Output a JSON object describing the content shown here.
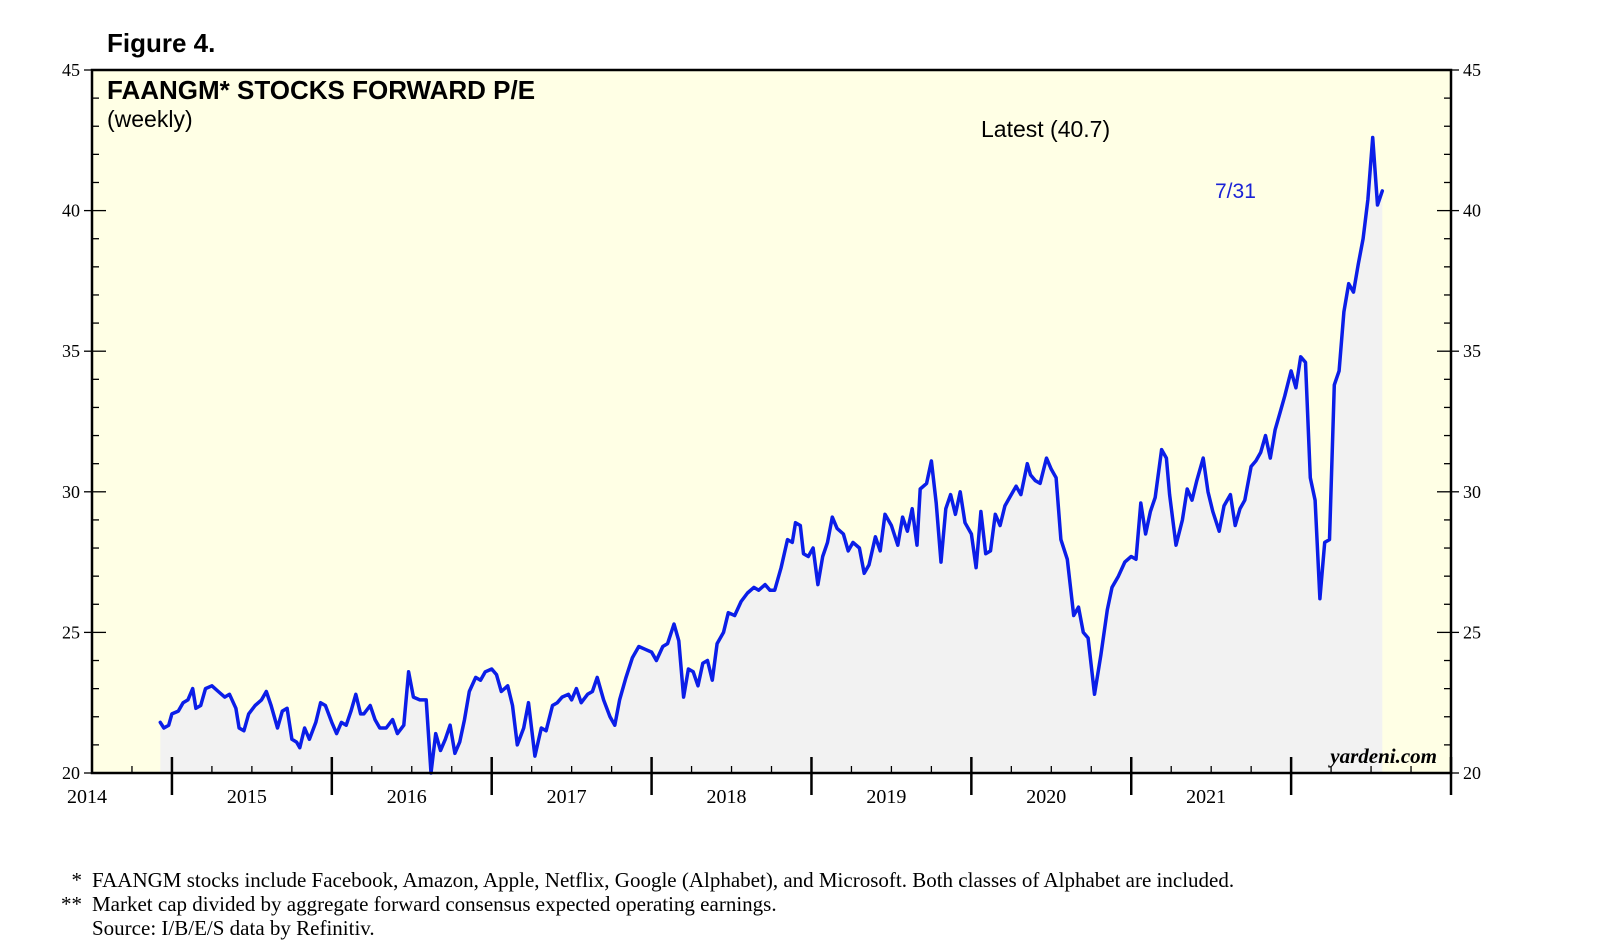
{
  "figure_label": "Figure 4.",
  "credit": "yardeni.com",
  "latest_label": "Latest (40.7)",
  "end_date_label": "7/31",
  "colors": {
    "plot_bg": "#ffffe5",
    "area_fill": "#f2f2f2",
    "line": "#0b1ee8",
    "annotation": "#1a22d6"
  },
  "footnotes": [
    {
      "mark": "*",
      "text": "FAANGM stocks include Facebook, Amazon, Apple, Netflix, Google (Alphabet), and Microsoft. Both classes of Alphabet are included."
    },
    {
      "mark": "**",
      "text": "Market cap divided by aggregate forward consensus expected operating earnings."
    },
    {
      "mark": "",
      "text": "Source: I/B/E/S data by Refinitiv."
    }
  ],
  "chart_data": {
    "type": "area",
    "title": "FAANGM* STOCKS FORWARD P/E",
    "subtitle": "(weekly)",
    "xlabel": "",
    "ylabel": "",
    "ylim": [
      20,
      45
    ],
    "xlim": [
      2013.5,
      2022
    ],
    "yticks": [
      20,
      25,
      30,
      35,
      40,
      45
    ],
    "year_labels": [
      "2014",
      "2015",
      "2016",
      "2017",
      "2018",
      "2019",
      "2020",
      "2021"
    ],
    "grid": false,
    "legend": "none",
    "series": [
      {
        "values": [
          [
            2013.927,
            21.8
          ],
          [
            2013.95,
            21.6
          ],
          [
            2013.98,
            21.7
          ],
          [
            2014.0,
            22.1
          ],
          [
            2014.04,
            22.2
          ],
          [
            2014.07,
            22.5
          ],
          [
            2014.1,
            22.6
          ],
          [
            2014.13,
            23.0
          ],
          [
            2014.15,
            22.3
          ],
          [
            2014.18,
            22.4
          ],
          [
            2014.21,
            23.0
          ],
          [
            2014.25,
            23.1
          ],
          [
            2014.29,
            22.9
          ],
          [
            2014.33,
            22.7
          ],
          [
            2014.36,
            22.8
          ],
          [
            2014.4,
            22.3
          ],
          [
            2014.42,
            21.6
          ],
          [
            2014.45,
            21.5
          ],
          [
            2014.48,
            22.1
          ],
          [
            2014.52,
            22.4
          ],
          [
            2014.56,
            22.6
          ],
          [
            2014.59,
            22.9
          ],
          [
            2014.62,
            22.4
          ],
          [
            2014.66,
            21.6
          ],
          [
            2014.69,
            22.2
          ],
          [
            2014.72,
            22.3
          ],
          [
            2014.75,
            21.2
          ],
          [
            2014.78,
            21.1
          ],
          [
            2014.8,
            20.9
          ],
          [
            2014.83,
            21.6
          ],
          [
            2014.86,
            21.2
          ],
          [
            2014.9,
            21.8
          ],
          [
            2014.93,
            22.5
          ],
          [
            2014.96,
            22.4
          ],
          [
            2015.0,
            21.8
          ],
          [
            2015.03,
            21.4
          ],
          [
            2015.06,
            21.8
          ],
          [
            2015.09,
            21.7
          ],
          [
            2015.12,
            22.2
          ],
          [
            2015.15,
            22.8
          ],
          [
            2015.18,
            22.1
          ],
          [
            2015.2,
            22.1
          ],
          [
            2015.24,
            22.4
          ],
          [
            2015.27,
            21.9
          ],
          [
            2015.3,
            21.6
          ],
          [
            2015.34,
            21.6
          ],
          [
            2015.38,
            21.9
          ],
          [
            2015.41,
            21.4
          ],
          [
            2015.45,
            21.7
          ],
          [
            2015.48,
            23.6
          ],
          [
            2015.51,
            22.7
          ],
          [
            2015.55,
            22.6
          ],
          [
            2015.59,
            22.6
          ],
          [
            2015.62,
            20.0
          ],
          [
            2015.65,
            21.4
          ],
          [
            2015.68,
            20.8
          ],
          [
            2015.71,
            21.2
          ],
          [
            2015.74,
            21.7
          ],
          [
            2015.77,
            20.7
          ],
          [
            2015.8,
            21.1
          ],
          [
            2015.83,
            21.9
          ],
          [
            2015.86,
            22.9
          ],
          [
            2015.9,
            23.4
          ],
          [
            2015.93,
            23.3
          ],
          [
            2015.96,
            23.6
          ],
          [
            2016.0,
            23.7
          ],
          [
            2016.03,
            23.5
          ],
          [
            2016.06,
            22.9
          ],
          [
            2016.1,
            23.1
          ],
          [
            2016.13,
            22.4
          ],
          [
            2016.16,
            21.0
          ],
          [
            2016.2,
            21.6
          ],
          [
            2016.23,
            22.5
          ],
          [
            2016.27,
            20.6
          ],
          [
            2016.31,
            21.6
          ],
          [
            2016.34,
            21.5
          ],
          [
            2016.38,
            22.4
          ],
          [
            2016.41,
            22.5
          ],
          [
            2016.44,
            22.7
          ],
          [
            2016.48,
            22.8
          ],
          [
            2016.5,
            22.6
          ],
          [
            2016.53,
            23.0
          ],
          [
            2016.56,
            22.5
          ],
          [
            2016.6,
            22.8
          ],
          [
            2016.63,
            22.9
          ],
          [
            2016.66,
            23.4
          ],
          [
            2016.7,
            22.6
          ],
          [
            2016.74,
            22.0
          ],
          [
            2016.77,
            21.7
          ],
          [
            2016.8,
            22.6
          ],
          [
            2016.84,
            23.4
          ],
          [
            2016.88,
            24.1
          ],
          [
            2016.92,
            24.5
          ],
          [
            2016.96,
            24.4
          ],
          [
            2017.0,
            24.3
          ],
          [
            2017.03,
            24.0
          ],
          [
            2017.07,
            24.5
          ],
          [
            2017.1,
            24.6
          ],
          [
            2017.14,
            25.3
          ],
          [
            2017.17,
            24.7
          ],
          [
            2017.2,
            22.7
          ],
          [
            2017.23,
            23.7
          ],
          [
            2017.26,
            23.6
          ],
          [
            2017.29,
            23.1
          ],
          [
            2017.32,
            23.9
          ],
          [
            2017.35,
            24.0
          ],
          [
            2017.38,
            23.3
          ],
          [
            2017.41,
            24.6
          ],
          [
            2017.45,
            25.0
          ],
          [
            2017.48,
            25.7
          ],
          [
            2017.52,
            25.6
          ],
          [
            2017.56,
            26.1
          ],
          [
            2017.6,
            26.4
          ],
          [
            2017.64,
            26.6
          ],
          [
            2017.67,
            26.5
          ],
          [
            2017.71,
            26.7
          ],
          [
            2017.74,
            26.5
          ],
          [
            2017.77,
            26.5
          ],
          [
            2017.81,
            27.3
          ],
          [
            2017.85,
            28.3
          ],
          [
            2017.88,
            28.2
          ],
          [
            2017.9,
            28.9
          ],
          [
            2017.93,
            28.8
          ],
          [
            2017.95,
            27.8
          ],
          [
            2017.98,
            27.7
          ],
          [
            2018.01,
            28.0
          ],
          [
            2018.04,
            26.7
          ],
          [
            2018.07,
            27.7
          ],
          [
            2018.1,
            28.2
          ],
          [
            2018.13,
            29.1
          ],
          [
            2018.16,
            28.7
          ],
          [
            2018.2,
            28.5
          ],
          [
            2018.23,
            27.9
          ],
          [
            2018.26,
            28.2
          ],
          [
            2018.3,
            28.0
          ],
          [
            2018.33,
            27.1
          ],
          [
            2018.36,
            27.4
          ],
          [
            2018.4,
            28.4
          ],
          [
            2018.43,
            27.9
          ],
          [
            2018.46,
            29.2
          ],
          [
            2018.5,
            28.8
          ],
          [
            2018.54,
            28.1
          ],
          [
            2018.57,
            29.1
          ],
          [
            2018.6,
            28.6
          ],
          [
            2018.63,
            29.4
          ],
          [
            2018.66,
            28.1
          ],
          [
            2018.68,
            30.1
          ],
          [
            2018.72,
            30.3
          ],
          [
            2018.75,
            31.1
          ],
          [
            2018.78,
            29.6
          ],
          [
            2018.81,
            27.5
          ],
          [
            2018.84,
            29.4
          ],
          [
            2018.87,
            29.9
          ],
          [
            2018.9,
            29.2
          ],
          [
            2018.93,
            30.0
          ],
          [
            2018.96,
            28.9
          ],
          [
            2019.0,
            28.5
          ],
          [
            2019.03,
            27.3
          ],
          [
            2019.06,
            29.3
          ],
          [
            2019.09,
            27.8
          ],
          [
            2019.12,
            27.9
          ],
          [
            2019.15,
            29.2
          ],
          [
            2019.18,
            28.8
          ],
          [
            2019.21,
            29.5
          ],
          [
            2019.24,
            29.8
          ],
          [
            2019.28,
            30.2
          ],
          [
            2019.31,
            29.9
          ],
          [
            2019.35,
            31.0
          ],
          [
            2019.37,
            30.6
          ],
          [
            2019.4,
            30.4
          ],
          [
            2019.43,
            30.3
          ],
          [
            2019.47,
            31.2
          ],
          [
            2019.5,
            30.8
          ],
          [
            2019.53,
            30.5
          ],
          [
            2019.56,
            28.3
          ],
          [
            2019.6,
            27.6
          ],
          [
            2019.64,
            25.6
          ],
          [
            2019.67,
            25.9
          ],
          [
            2019.7,
            25.0
          ],
          [
            2019.73,
            24.8
          ],
          [
            2019.77,
            22.8
          ],
          [
            2019.81,
            24.2
          ],
          [
            2019.85,
            25.8
          ],
          [
            2019.88,
            26.6
          ],
          [
            2019.92,
            27.0
          ],
          [
            2019.96,
            27.5
          ],
          [
            2020.0,
            27.7
          ],
          [
            2020.03,
            27.6
          ],
          [
            2020.06,
            29.6
          ],
          [
            2020.09,
            28.5
          ],
          [
            2020.12,
            29.3
          ],
          [
            2020.15,
            29.8
          ],
          [
            2020.19,
            31.5
          ],
          [
            2020.22,
            31.2
          ],
          [
            2020.24,
            29.9
          ],
          [
            2020.28,
            28.1
          ],
          [
            2020.32,
            29.0
          ],
          [
            2020.35,
            30.1
          ],
          [
            2020.38,
            29.7
          ],
          [
            2020.41,
            30.4
          ],
          [
            2020.45,
            31.2
          ],
          [
            2020.48,
            30.0
          ],
          [
            2020.51,
            29.3
          ],
          [
            2020.55,
            28.6
          ],
          [
            2020.58,
            29.5
          ],
          [
            2020.62,
            29.9
          ],
          [
            2020.65,
            28.8
          ],
          [
            2020.68,
            29.4
          ],
          [
            2020.71,
            29.7
          ],
          [
            2020.75,
            30.9
          ],
          [
            2020.78,
            31.1
          ],
          [
            2020.81,
            31.4
          ],
          [
            2020.84,
            32.0
          ],
          [
            2020.87,
            31.2
          ],
          [
            2020.9,
            32.2
          ],
          [
            2020.93,
            32.8
          ],
          [
            2020.96,
            33.4
          ],
          [
            2021.0,
            34.3
          ],
          [
            2021.03,
            33.7
          ],
          [
            2021.06,
            34.8
          ],
          [
            2021.09,
            34.6
          ],
          [
            2021.12,
            30.5
          ],
          [
            2021.15,
            29.7
          ],
          [
            2021.18,
            26.2
          ],
          [
            2021.21,
            28.2
          ],
          [
            2021.24,
            28.3
          ],
          [
            2021.27,
            33.8
          ],
          [
            2021.3,
            34.3
          ],
          [
            2021.33,
            36.4
          ],
          [
            2021.36,
            37.4
          ],
          [
            2021.39,
            37.1
          ],
          [
            2021.42,
            38.1
          ],
          [
            2021.45,
            39.0
          ],
          [
            2021.48,
            40.4
          ],
          [
            2021.51,
            42.6
          ],
          [
            2021.54,
            40.2
          ],
          [
            2021.57,
            40.7
          ]
        ]
      }
    ],
    "annotations": [
      "Latest (40.7)",
      "7/31"
    ]
  }
}
